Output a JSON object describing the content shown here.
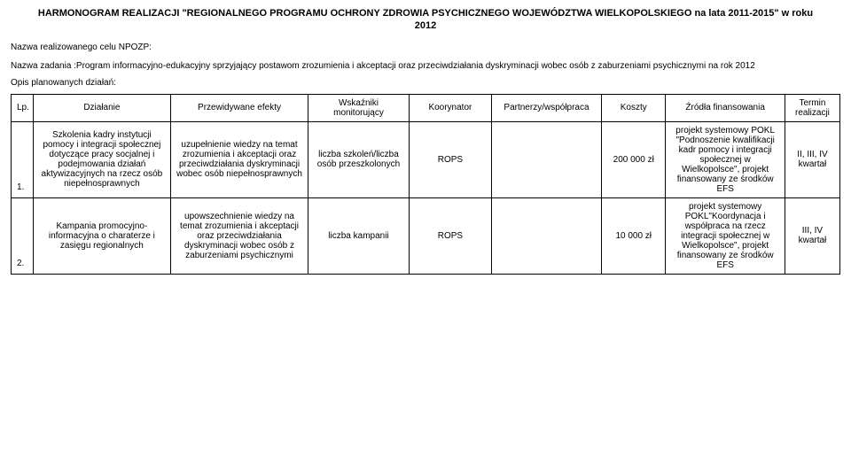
{
  "title_line1": "HARMONOGRAM REALIZACJI \"REGIONALNEGO PROGRAMU OCHRONY ZDROWIA PSYCHICZNEGO WOJEWÓDZTWA WIELKOPOLSKIEGO na lata 2011-2015\" w roku",
  "title_line2": "2012",
  "intro_label": "Nazwa realizowanego celu NPOZP:",
  "intro_text": "Nazwa zadania :Program informacyjno-edukacyjny sprzyjający postawom zrozumienia i akceptacji oraz przeciwdziałania dyskryminacji wobec osób z zaburzeniami psychicznymi na rok 2012",
  "intro_opis": "Opis planowanych działań:",
  "headers": {
    "lp": "Lp.",
    "dzialanie": "Działanie",
    "efekty": "Przewidywane efekty",
    "wskazniki": "Wskaźniki monitorujący",
    "koorynator": "Koorynator",
    "partnerzy": "Partnerzy/współpraca",
    "koszty": "Koszty",
    "zrodla": "Źródła finansowania",
    "termin": "Termin realizacji"
  },
  "rows": [
    {
      "lp": "1.",
      "dzialanie": "Szkolenia kadry instytucji pomocy i integracji społecznej dotyczące pracy socjalnej i podejmowania działań aktywizacyjnych na rzecz osób niepełnosprawnych",
      "efekty": "uzupełnienie wiedzy na temat zrozumienia i akceptacji oraz przeciwdziałania dyskryminacji wobec osób niepełnosprawnych",
      "wskazniki": "liczba szkoleń/liczba osób przeszkolonych",
      "koorynator": "ROPS",
      "partnerzy": "",
      "koszty": "200 000 zł",
      "zrodla": "projekt systemowy POKL \"Podnoszenie kwalifikacji kadr pomocy i integracji społecznej w Wielkopolsce\", projekt finansowany ze środków EFS",
      "termin": "II, III, IV kwartał"
    },
    {
      "lp": "2.",
      "dzialanie": "Kampania promocyjno-informacyjna o charaterze i zasięgu regionalnych",
      "efekty": "upowszechnienie wiedzy na temat zrozumienia i akceptacji oraz przeciwdziałania dyskryminacji wobec osób z zaburzeniami psychicznymi",
      "wskazniki": "liczba kampanii",
      "koorynator": "ROPS",
      "partnerzy": "",
      "koszty": "10 000 zł",
      "zrodla": "projekt systemowy POKL\"Koordynacja i współpraca na rzecz integracji społecznej w Wielkopolsce\", projekt finansowany ze środków EFS",
      "termin": "III, IV kwartał"
    }
  ]
}
